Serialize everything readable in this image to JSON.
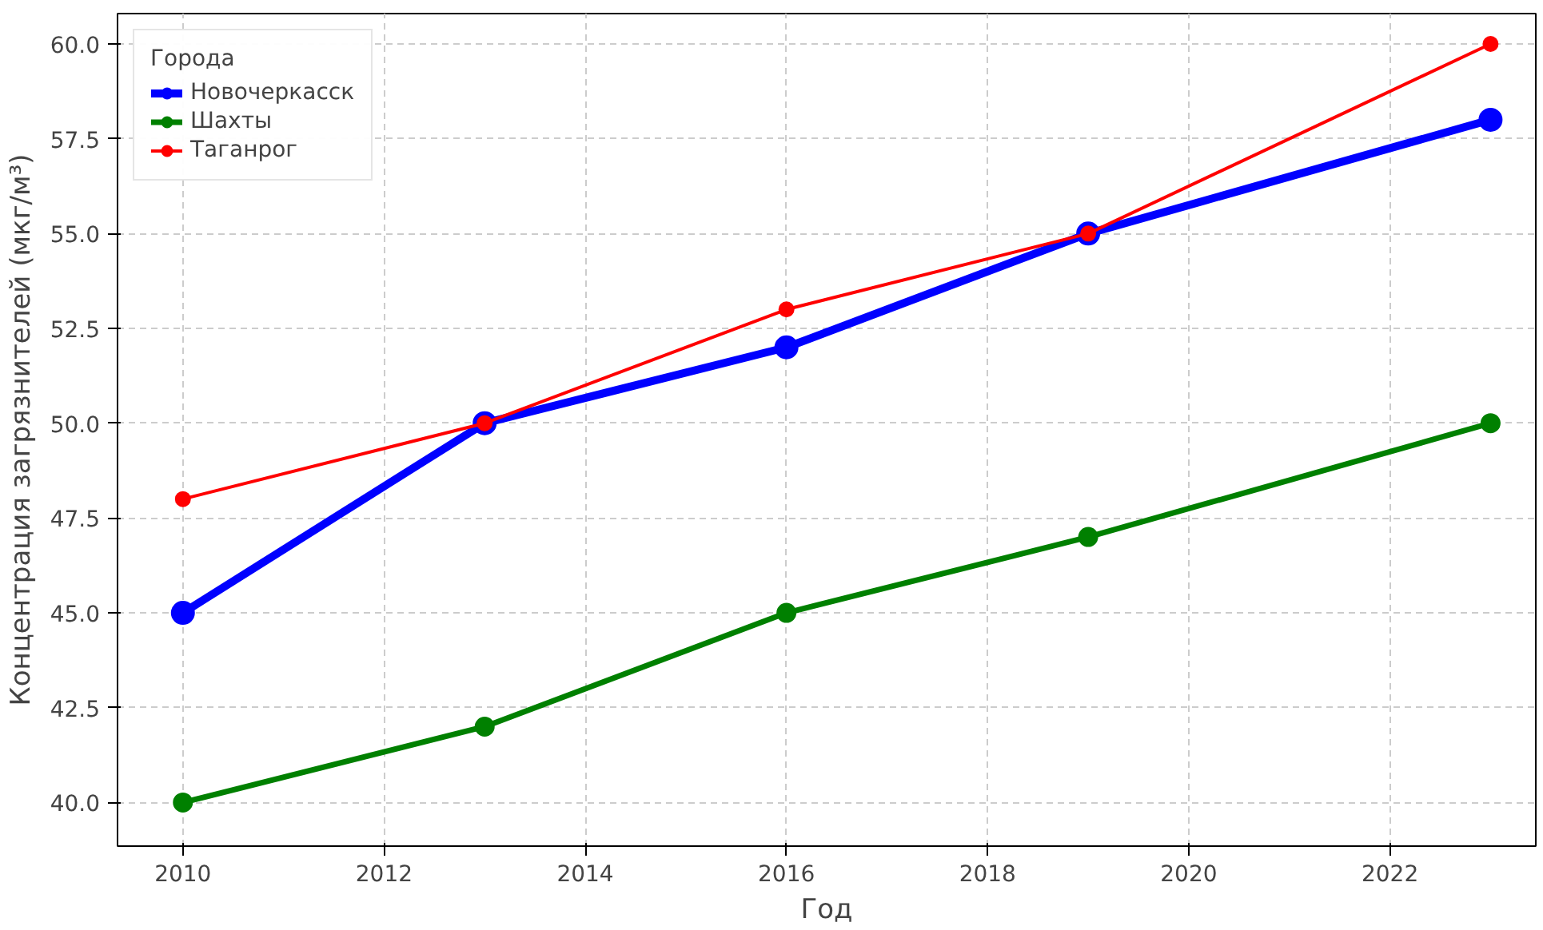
{
  "chart_data": {
    "type": "line",
    "xlabel": "Год",
    "ylabel": "Концентрация загрязнителей (мкг/м³)",
    "legend_title": "Города",
    "x": [
      2010,
      2013,
      2016,
      2019,
      2023
    ],
    "series": [
      {
        "name": "Новочеркасск",
        "color": "#0000ff",
        "values": [
          45,
          50,
          52,
          55,
          58
        ]
      },
      {
        "name": "Шахты",
        "color": "#008000",
        "values": [
          40,
          42,
          45,
          47,
          50
        ]
      },
      {
        "name": "Таганрог",
        "color": "#ff0000",
        "values": [
          48,
          50,
          53,
          55,
          60
        ]
      }
    ],
    "xlim": [
      2009.35,
      2023.45
    ],
    "ylim": [
      38.85,
      60.8
    ],
    "xticks": [
      2010,
      2012,
      2014,
      2016,
      2018,
      2020,
      2022
    ],
    "yticks": [
      {
        "value": 40,
        "label": "40.0"
      },
      {
        "value": 42.5,
        "label": "42.5"
      },
      {
        "value": 45,
        "label": "45.0"
      },
      {
        "value": 47.5,
        "label": "47.5"
      },
      {
        "value": 50,
        "label": "50.0"
      },
      {
        "value": 52.5,
        "label": "52.5"
      },
      {
        "value": 55,
        "label": "55.0"
      },
      {
        "value": 57.5,
        "label": "57.5"
      },
      {
        "value": 60,
        "label": "60.0"
      }
    ],
    "grid": true,
    "legend": "top left",
    "marker": "circle",
    "line_style": "solid"
  }
}
